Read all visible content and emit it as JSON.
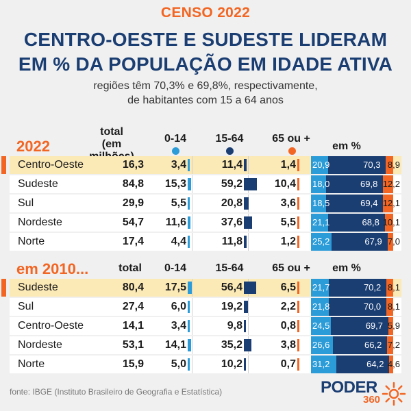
{
  "header": {
    "kicker": "CENSO 2022",
    "title_line1": "CENTRO-OESTE E SUDESTE LIDERAM",
    "title_line2": "EM % DA POPULAÇÃO EM IDADE ATIVA",
    "subtitle_line1": "regiões têm 70,3% e 69,8%, respectivamente,",
    "subtitle_line2": "de habitantes com 15 a 64 anos"
  },
  "colors": {
    "accent": "#f26522",
    "navy": "#1a3d72",
    "blue": "#2b9cd8",
    "highlight": "#fbe9b6",
    "row": "#ffffff",
    "background": "#f0f0f0"
  },
  "sections": [
    {
      "label": "2022",
      "headers": {
        "total": "total",
        "total_unit": "(em milhões)",
        "age_0_14": "0-14",
        "age_15_64": "15-64",
        "age_65": "65 ou +",
        "pct": "em %"
      },
      "rows": [
        {
          "region": "Centro-Oeste",
          "total": "16,3",
          "a": "3,4",
          "b": "11,4",
          "c": "1,4",
          "pa": "20,9",
          "pb": "70,3",
          "pc": "8,9",
          "highlight": true
        },
        {
          "region": "Sudeste",
          "total": "84,8",
          "a": "15,3",
          "b": "59,2",
          "c": "10,4",
          "pa": "18,0",
          "pb": "69,8",
          "pc": "12,2",
          "highlight": false
        },
        {
          "region": "Sul",
          "total": "29,9",
          "a": "5,5",
          "b": "20,8",
          "c": "3,6",
          "pa": "18,5",
          "pb": "69,4",
          "pc": "12,1",
          "highlight": false
        },
        {
          "region": "Nordeste",
          "total": "54,7",
          "a": "11,6",
          "b": "37,6",
          "c": "5,5",
          "pa": "21,1",
          "pb": "68,8",
          "pc": "10,1",
          "highlight": false
        },
        {
          "region": "Norte",
          "total": "17,4",
          "a": "4,4",
          "b": "11,8",
          "c": "1,2",
          "pa": "25,2",
          "pb": "67,9",
          "pc": "7,0",
          "highlight": false
        }
      ]
    },
    {
      "label": "em 2010...",
      "headers": {
        "total": "total",
        "total_unit": "",
        "age_0_14": "0-14",
        "age_15_64": "15-64",
        "age_65": "65 ou +",
        "pct": "em %"
      },
      "rows": [
        {
          "region": "Sudeste",
          "total": "80,4",
          "a": "17,5",
          "b": "56,4",
          "c": "6,5",
          "pa": "21,7",
          "pb": "70,2",
          "pc": "8,1",
          "highlight": true
        },
        {
          "region": "Sul",
          "total": "27,4",
          "a": "6,0",
          "b": "19,2",
          "c": "2,2",
          "pa": "21,8",
          "pb": "70,0",
          "pc": "8,1",
          "highlight": false
        },
        {
          "region": "Centro-Oeste",
          "total": "14,1",
          "a": "3,4",
          "b": "9,8",
          "c": "0,8",
          "pa": "24,5",
          "pb": "69,7",
          "pc": "5,9",
          "highlight": false
        },
        {
          "region": "Nordeste",
          "total": "53,1",
          "a": "14,1",
          "b": "35,2",
          "c": "3,8",
          "pa": "26,6",
          "pb": "66,2",
          "pc": "7,2",
          "highlight": false
        },
        {
          "region": "Norte",
          "total": "15,9",
          "a": "5,0",
          "b": "10,2",
          "c": "0,7",
          "pa": "31,2",
          "pb": "64,2",
          "pc": "4,6",
          "highlight": false
        }
      ]
    }
  ],
  "chart_data": {
    "type": "table",
    "title": "CENTRO-OESTE E SUDESTE LIDERAM EM % DA POPULAÇÃO EM IDADE ATIVA",
    "columns": [
      "total (em milhões)",
      "0-14",
      "15-64",
      "65 ou +",
      "em % 0-14",
      "em % 15-64",
      "em % 65 ou +"
    ],
    "tables": [
      {
        "label": "2022",
        "rows": [
          {
            "region": "Centro-Oeste",
            "values": [
              16.3,
              3.4,
              11.4,
              1.4,
              20.9,
              70.3,
              8.9
            ]
          },
          {
            "region": "Sudeste",
            "values": [
              84.8,
              15.3,
              59.2,
              10.4,
              18.0,
              69.8,
              12.2
            ]
          },
          {
            "region": "Sul",
            "values": [
              29.9,
              5.5,
              20.8,
              3.6,
              18.5,
              69.4,
              12.1
            ]
          },
          {
            "region": "Nordeste",
            "values": [
              54.7,
              11.6,
              37.6,
              5.5,
              21.1,
              68.8,
              10.1
            ]
          },
          {
            "region": "Norte",
            "values": [
              17.4,
              4.4,
              11.8,
              1.2,
              25.2,
              67.9,
              7.0
            ]
          }
        ]
      },
      {
        "label": "em 2010...",
        "rows": [
          {
            "region": "Sudeste",
            "values": [
              80.4,
              17.5,
              56.4,
              6.5,
              21.7,
              70.2,
              8.1
            ]
          },
          {
            "region": "Sul",
            "values": [
              27.4,
              6.0,
              19.2,
              2.2,
              21.8,
              70.0,
              8.1
            ]
          },
          {
            "region": "Centro-Oeste",
            "values": [
              14.1,
              3.4,
              9.8,
              0.8,
              24.5,
              69.7,
              5.9
            ]
          },
          {
            "region": "Nordeste",
            "values": [
              53.1,
              14.1,
              35.2,
              3.8,
              26.6,
              66.2,
              7.2
            ]
          },
          {
            "region": "Norte",
            "values": [
              15.9,
              5.0,
              10.2,
              0.7,
              31.2,
              64.2,
              4.6
            ]
          }
        ]
      }
    ]
  },
  "footer": {
    "source": "fonte: IBGE (Instituto Brasileiro de Geografia e Estatística)",
    "logo_word": "PODER",
    "logo_number": "360"
  }
}
